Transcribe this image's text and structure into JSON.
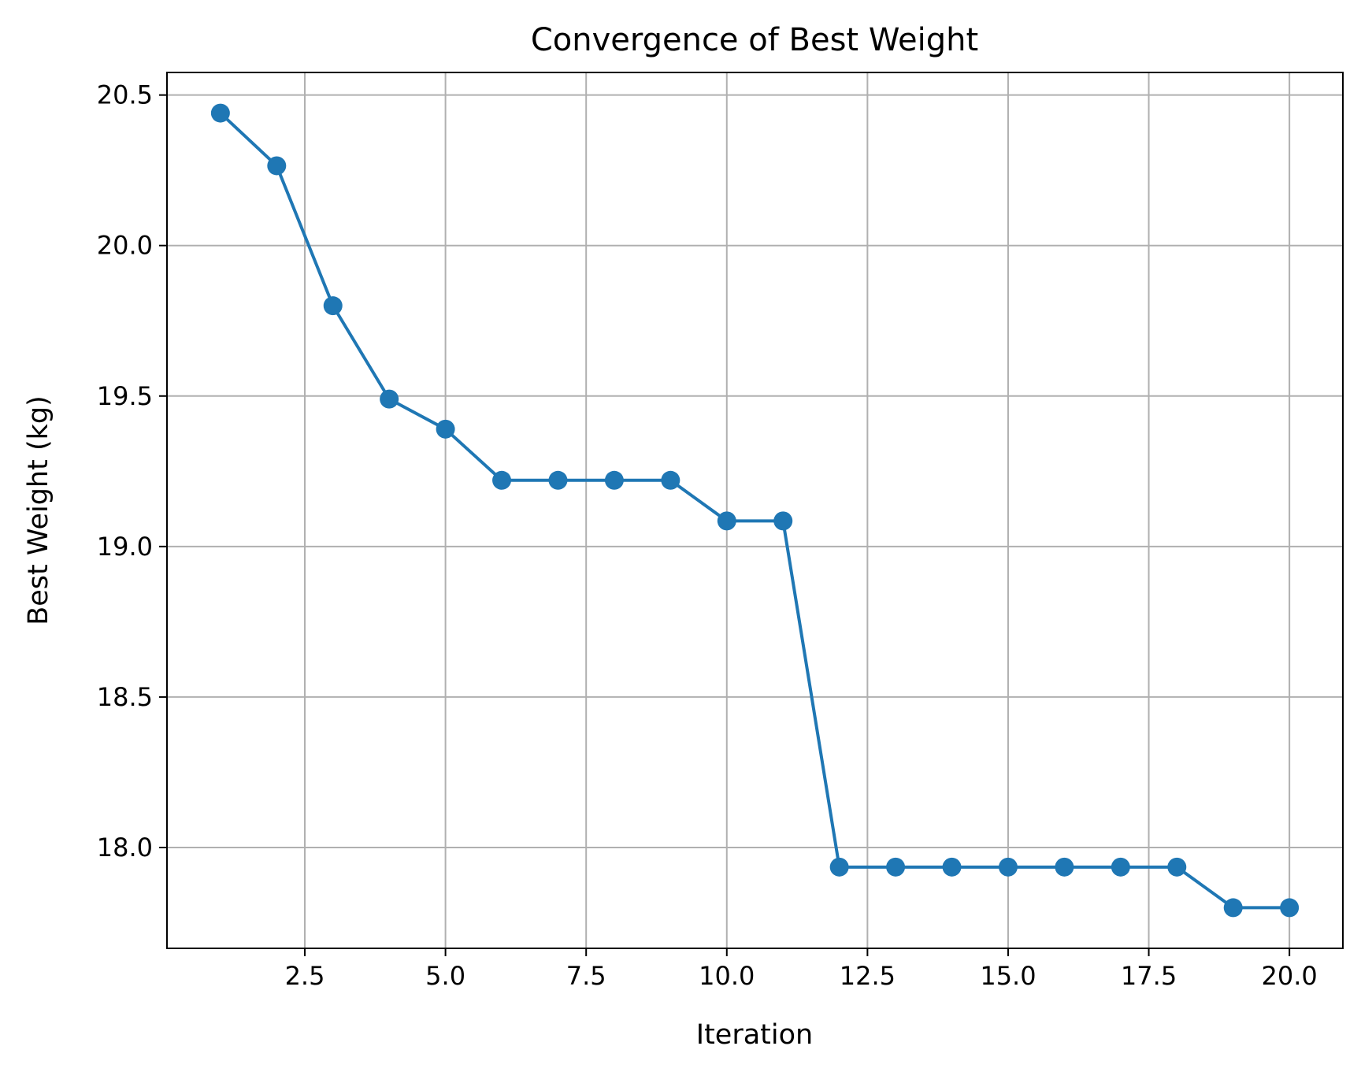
{
  "chart_data": {
    "type": "line",
    "title": "Convergence of Best Weight",
    "xlabel": "Iteration",
    "ylabel": "Best Weight (kg)",
    "xlim": [
      0.05,
      20.95
    ],
    "ylim": [
      17.665,
      20.575
    ],
    "xticks": [
      2.5,
      5.0,
      7.5,
      10.0,
      12.5,
      15.0,
      17.5,
      20.0
    ],
    "xtick_labels": [
      "2.5",
      "5.0",
      "7.5",
      "10.0",
      "12.5",
      "15.0",
      "17.5",
      "20.0"
    ],
    "yticks": [
      18.0,
      18.5,
      19.0,
      19.5,
      20.0,
      20.5
    ],
    "ytick_labels": [
      "18.0",
      "18.5",
      "19.0",
      "19.5",
      "20.0",
      "20.5"
    ],
    "grid": true,
    "color": "#1f77b4",
    "marker": "circle",
    "series": [
      {
        "x": [
          1,
          2,
          3,
          4,
          5,
          6,
          7,
          8,
          9,
          10,
          11,
          12,
          13,
          14,
          15,
          16,
          17,
          18,
          19,
          20
        ],
        "values": [
          20.44,
          20.265,
          19.8,
          19.49,
          19.39,
          19.22,
          19.22,
          19.22,
          19.22,
          19.085,
          19.085,
          17.935,
          17.935,
          17.935,
          17.935,
          17.935,
          17.935,
          17.935,
          17.8,
          17.8
        ]
      }
    ]
  }
}
